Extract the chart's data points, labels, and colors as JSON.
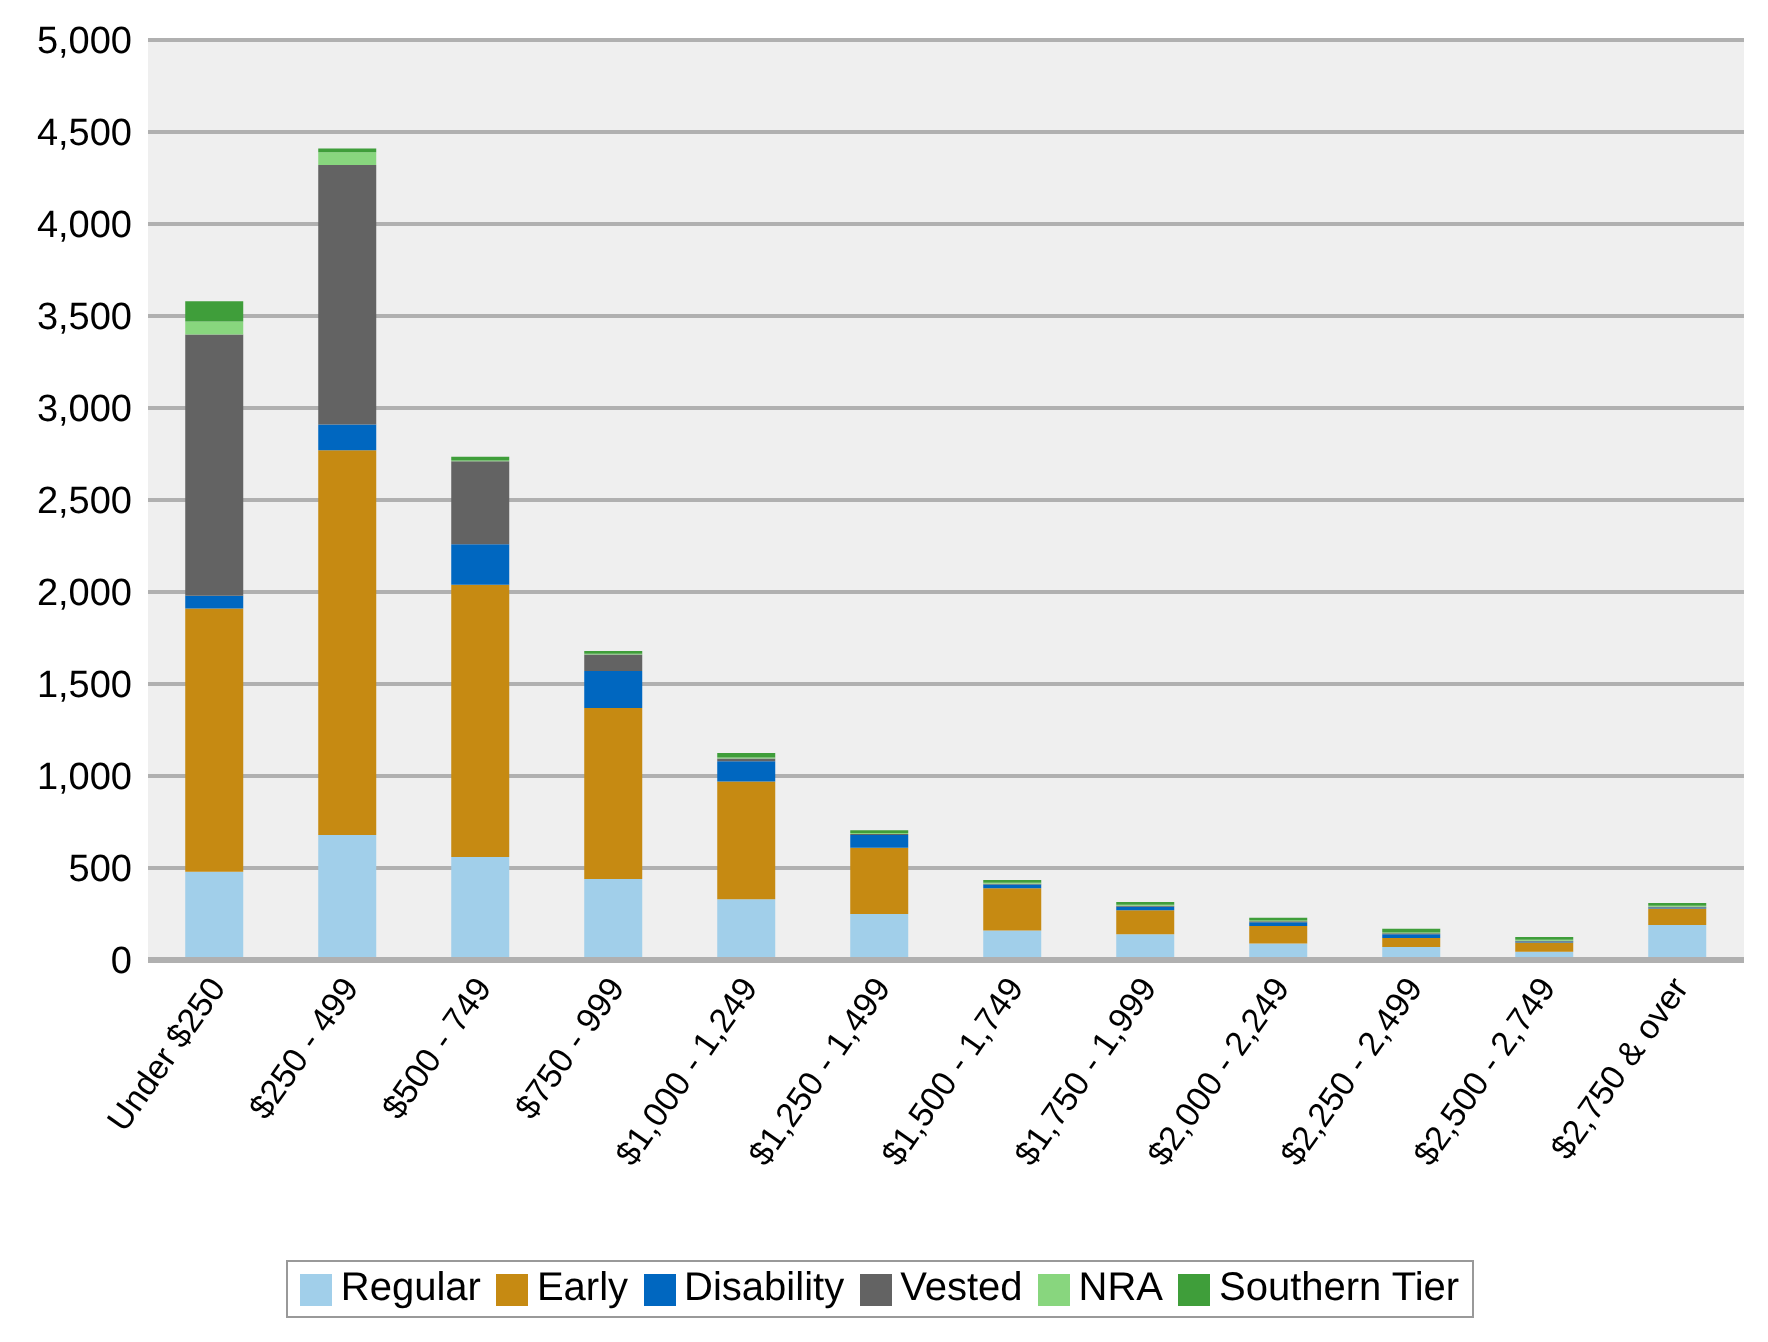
{
  "chart_data": {
    "type": "bar",
    "stacked": true,
    "categories": [
      "Under $250",
      "$250 - 499",
      "$500 - 749",
      "$750 - 999",
      "$1,000 - 1,249",
      "$1,250 - 1,499",
      "$1,500 - 1,749",
      "$1,750 - 1,999",
      "$2,000 - 2,249",
      "$2,250 - 2,499",
      "$2,500 - 2,749",
      "$2,750 & over"
    ],
    "series": [
      {
        "name": "Regular",
        "color": "#a1cfea",
        "values": [
          480,
          680,
          560,
          440,
          330,
          250,
          160,
          140,
          90,
          70,
          45,
          190
        ]
      },
      {
        "name": "Early",
        "color": "#c68a12",
        "values": [
          1430,
          2090,
          1480,
          930,
          640,
          360,
          230,
          130,
          95,
          50,
          50,
          90
        ]
      },
      {
        "name": "Disability",
        "color": "#0067c0",
        "values": [
          70,
          140,
          220,
          200,
          110,
          70,
          20,
          20,
          20,
          20,
          5,
          5
        ]
      },
      {
        "name": "Vested",
        "color": "#636363",
        "values": [
          1420,
          1410,
          450,
          90,
          15,
          5,
          5,
          5,
          5,
          5,
          5,
          5
        ]
      },
      {
        "name": "NRA",
        "color": "#88d67e",
        "values": [
          70,
          70,
          5,
          5,
          5,
          5,
          5,
          5,
          5,
          5,
          5,
          5
        ]
      },
      {
        "name": "Southern Tier",
        "color": "#3f9e3a",
        "values": [
          110,
          20,
          20,
          15,
          25,
          15,
          15,
          15,
          15,
          20,
          15,
          15
        ]
      }
    ],
    "ylim": [
      0,
      5000
    ],
    "yticks": [
      0,
      500,
      {
        "value": 1000,
        "label": "1,000"
      },
      {
        "value": 1500,
        "label": "1,500"
      },
      {
        "value": 2000,
        "label": "2,000"
      },
      {
        "value": 2500,
        "label": "2,500"
      },
      {
        "value": 3000,
        "label": "3,000"
      },
      {
        "value": 3500,
        "label": "3,500"
      },
      {
        "value": 4000,
        "label": "4,000"
      },
      {
        "value": 4500,
        "label": "4,500"
      },
      {
        "value": 5000,
        "label": "5,000"
      }
    ],
    "grid": "y",
    "legend": "bottom"
  }
}
